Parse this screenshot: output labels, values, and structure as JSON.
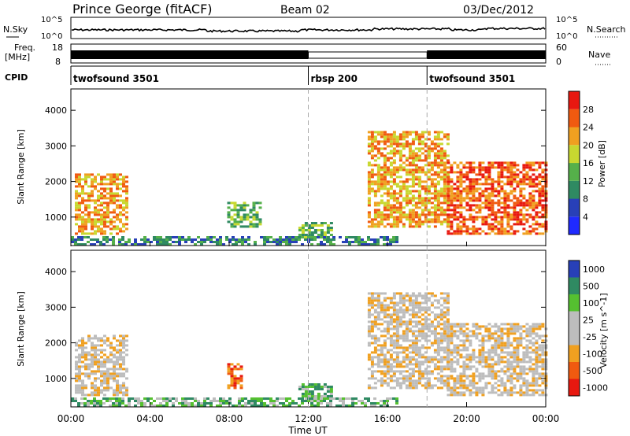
{
  "header": {
    "station": "Prince George (fitACF)",
    "beam": "Beam 02",
    "date": "03/Dec/2012"
  },
  "nsky_panel": {
    "left_label": "N.Sky",
    "right_label": "N.Search",
    "left_ticks": [
      {
        "label": "10^5",
        "y": 100000
      },
      {
        "label": "10^0",
        "y": 1
      }
    ],
    "right_ticks": [
      {
        "label": "10^5",
        "y": 100000
      },
      {
        "label": "10^0",
        "y": 1
      }
    ]
  },
  "freq_panel": {
    "left_label": "Freq.",
    "unit": "[MHz]",
    "right_label": "Nave",
    "left_ticks": [
      {
        "label": "18",
        "value": 18
      },
      {
        "label": "8",
        "value": 8
      }
    ],
    "right_ticks": [
      {
        "label": "60",
        "value": 60
      },
      {
        "label": "0",
        "value": 0
      }
    ]
  },
  "cpid_panel": {
    "label": "CPID",
    "segments": [
      {
        "label": "twofsound 3501",
        "start_hour": 0,
        "end_hour": 12
      },
      {
        "label": "rbsp 200",
        "start_hour": 12,
        "end_hour": 18
      },
      {
        "label": "twofsound 3501",
        "start_hour": 18,
        "end_hour": 24
      }
    ]
  },
  "colors": {
    "power": [
      "#1f2aff",
      "#2840b8",
      "#2f8a62",
      "#55b04a",
      "#c8d830",
      "#f0a020",
      "#f05a10",
      "#e81810"
    ],
    "velocity": [
      "#e81810",
      "#f05a10",
      "#f0a020",
      "#bdbdbd",
      "#bdbdbd",
      "#55c030",
      "#2f8a62",
      "#2840b8"
    ],
    "dashed_line": "#aaaaaa"
  },
  "chart_data": [
    {
      "type": "heatmap",
      "name": "power",
      "ylabel": "Slant Range [km]",
      "x_range": [
        0,
        24
      ],
      "ylim": [
        200,
        4600
      ],
      "y_ticks": [
        1000,
        2000,
        3000,
        4000
      ],
      "colorbar": {
        "label": "Power [dB]",
        "ticks": [
          "4",
          "8",
          "12",
          "16",
          "20",
          "24",
          "28"
        ],
        "range": [
          0,
          32
        ]
      },
      "regions": [
        {
          "x0": 0.2,
          "x1": 2.9,
          "y0": 500,
          "y1": 2200,
          "level": 5
        },
        {
          "x0": 7.9,
          "x1": 9.6,
          "y0": 700,
          "y1": 1400,
          "level": 3
        },
        {
          "x0": 11.5,
          "x1": 13.1,
          "y0": 400,
          "y1": 800,
          "level": 3
        },
        {
          "x0": 15.0,
          "x1": 19.0,
          "y0": 700,
          "y1": 3400,
          "level": 5
        },
        {
          "x0": 19.0,
          "x1": 24.0,
          "y0": 500,
          "y1": 2500,
          "level": 6
        },
        {
          "x0": 0.0,
          "x1": 16.5,
          "y0": 200,
          "y1": 450,
          "level": 2
        }
      ]
    },
    {
      "type": "heatmap",
      "name": "velocity",
      "ylabel": "Slant Range [km]",
      "xlabel": "Time UT",
      "x_range": [
        0,
        24
      ],
      "x_ticks": [
        "00:00",
        "04:00",
        "08:00",
        "12:00",
        "16:00",
        "20:00",
        "00:00"
      ],
      "ylim": [
        200,
        4600
      ],
      "y_ticks": [
        1000,
        2000,
        3000,
        4000
      ],
      "colorbar": {
        "label": "Velocity [m s^-1]",
        "ticks": [
          "1000",
          "500",
          "100",
          "25",
          "-25",
          "-100",
          "-500",
          "-1000"
        ]
      },
      "regions": [
        {
          "x0": 0.2,
          "x1": 2.9,
          "y0": 500,
          "y1": 2200,
          "level": 3
        },
        {
          "x0": 7.9,
          "x1": 8.6,
          "y0": 700,
          "y1": 1400,
          "level": 1
        },
        {
          "x0": 11.5,
          "x1": 13.1,
          "y0": 400,
          "y1": 800,
          "level": 5
        },
        {
          "x0": 15.0,
          "x1": 19.0,
          "y0": 700,
          "y1": 3400,
          "level": 3
        },
        {
          "x0": 19.0,
          "x1": 24.0,
          "y0": 500,
          "y1": 2500,
          "level": 3
        },
        {
          "x0": 0.0,
          "x1": 16.5,
          "y0": 200,
          "y1": 450,
          "level": 5
        }
      ]
    }
  ]
}
